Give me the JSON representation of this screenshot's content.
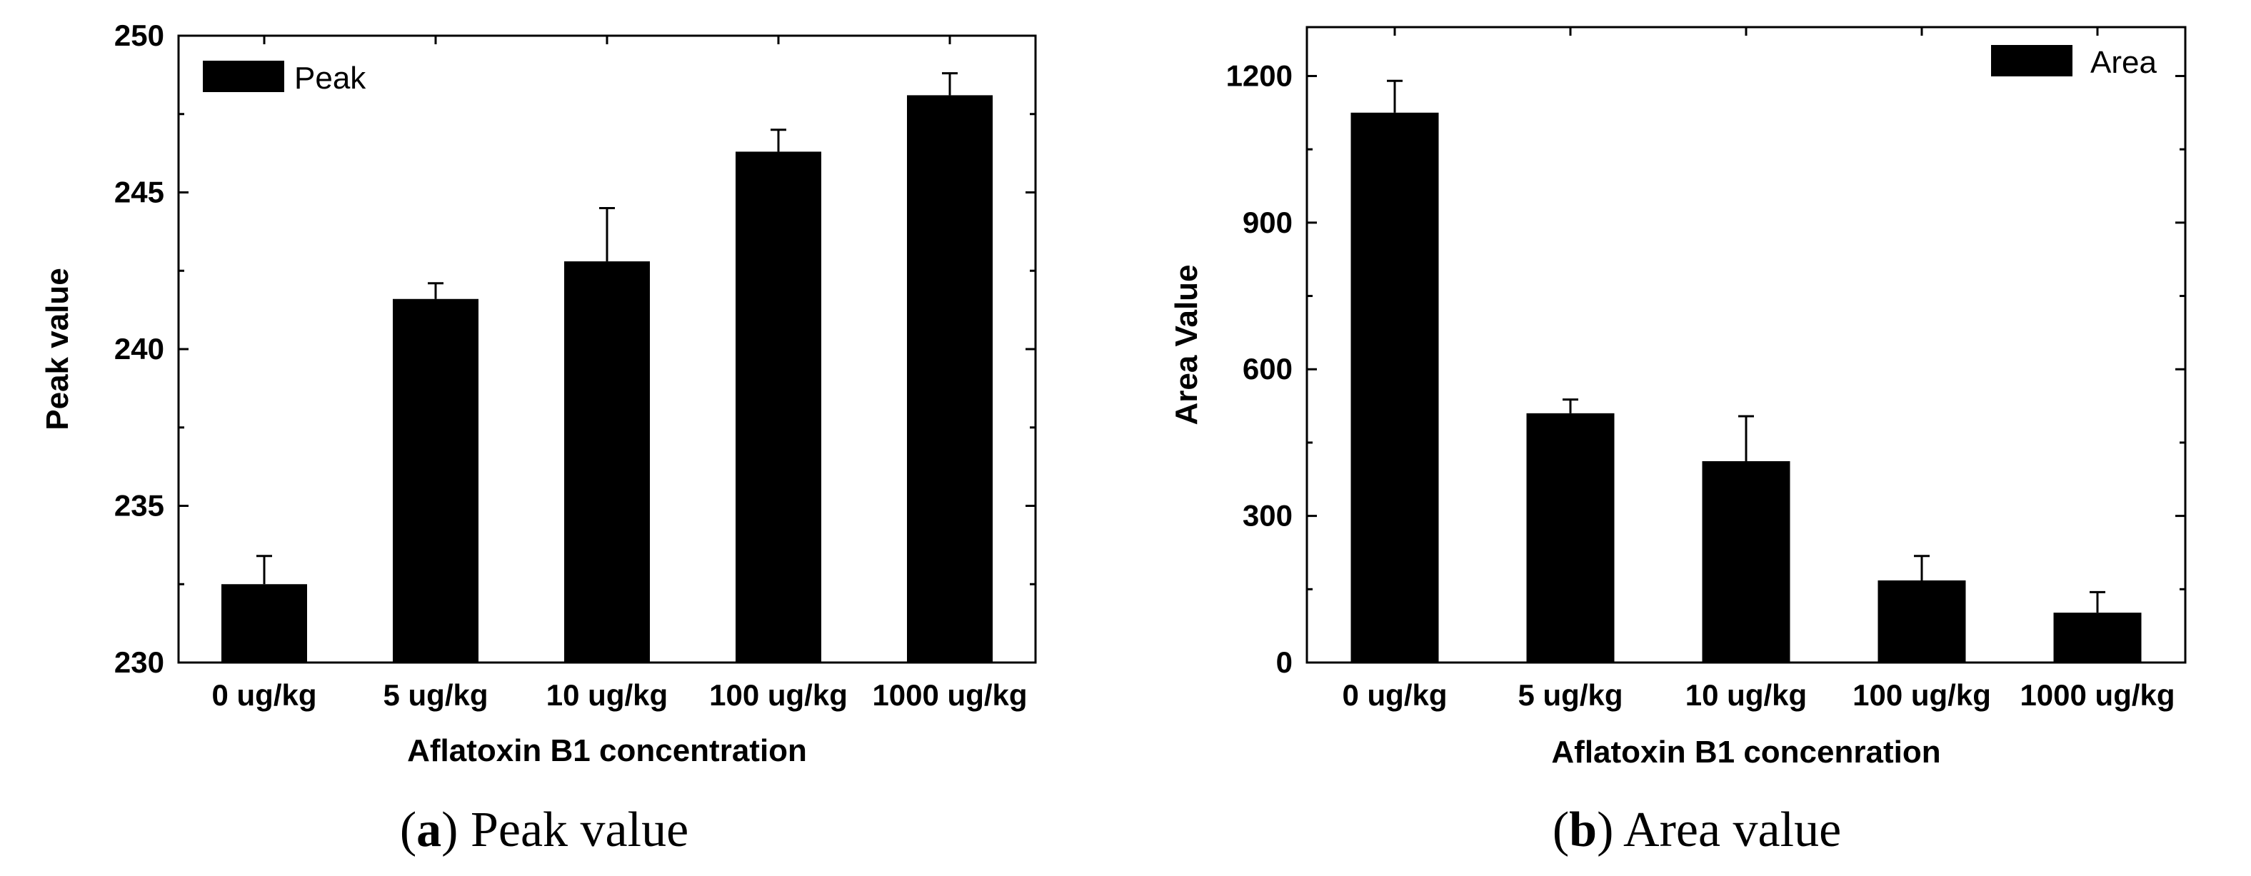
{
  "chart_data": [
    {
      "type": "bar",
      "caption_letter": "a",
      "caption_text": "Peak value",
      "xlabel": "Aflatoxin B1 concentration",
      "ylabel": "Peak value",
      "categories": [
        "0 ug/kg",
        "5 ug/kg",
        "10 ug/kg",
        "100 ug/kg",
        "1000 ug/kg"
      ],
      "series": [
        {
          "name": "Peak",
          "values": [
            232.5,
            241.6,
            242.8,
            246.3,
            248.1
          ],
          "errors": [
            0.9,
            0.5,
            1.7,
            0.7,
            0.7
          ]
        }
      ],
      "ylim": [
        230,
        250
      ],
      "yticks": [
        230,
        235,
        240,
        245,
        250
      ],
      "legend_position": "top-left",
      "bar_color": "#000000"
    },
    {
      "type": "bar",
      "caption_letter": "b",
      "caption_text": "Area value",
      "xlabel": "Aflatoxin B1 concenration",
      "ylabel": "Area Value",
      "categories": [
        "0 ug/kg",
        "5 ug/kg",
        "10 ug/kg",
        "100 ug/kg",
        "1000 ug/kg"
      ],
      "series": [
        {
          "name": "Area",
          "values": [
            1125,
            510,
            412,
            168,
            102
          ],
          "errors": [
            65,
            28,
            92,
            50,
            42
          ]
        }
      ],
      "ylim": [
        0,
        1300
      ],
      "yticks": [
        0,
        300,
        600,
        900,
        1200
      ],
      "legend_position": "top-right",
      "bar_color": "#000000"
    }
  ]
}
